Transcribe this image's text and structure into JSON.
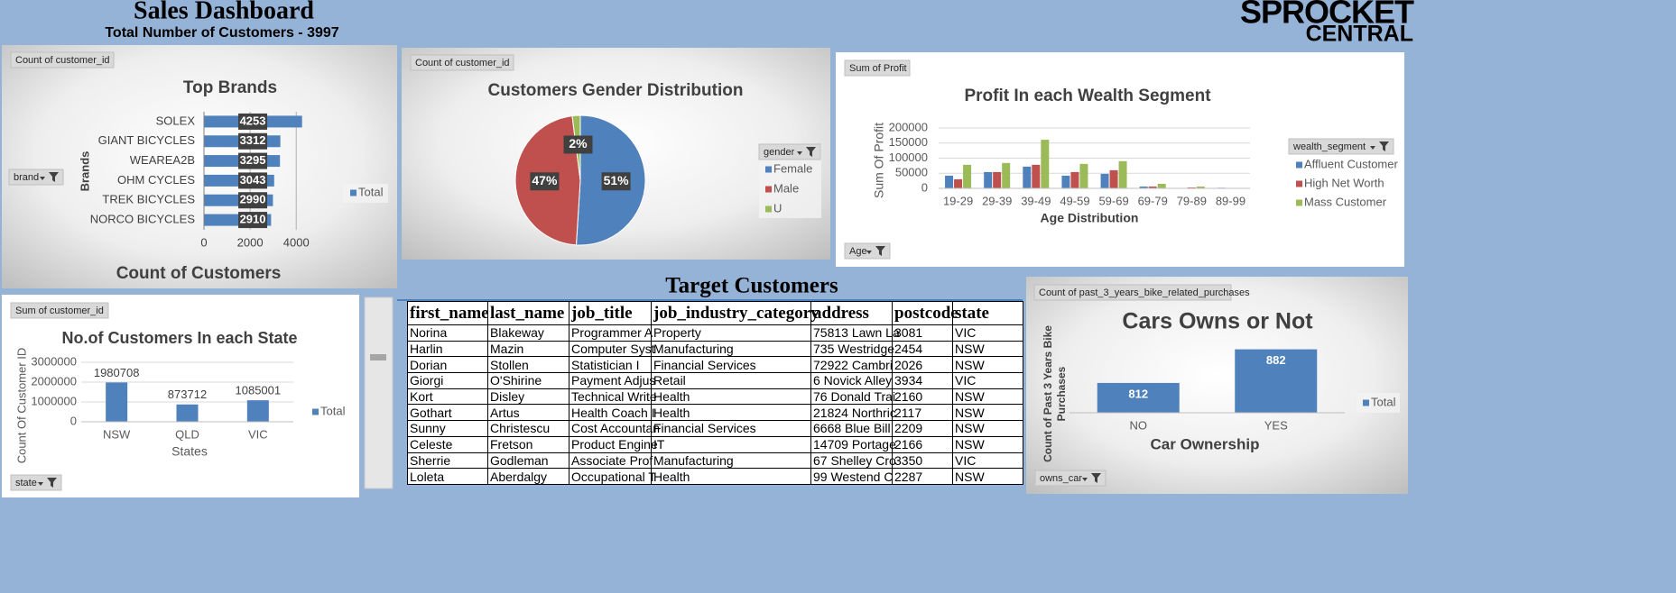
{
  "header": {
    "title": "Sales Dashboard",
    "subtitle": "Total Number of Customers - 3997",
    "logo_top": "SPROCKET",
    "logo_bottom": "CENTRAL",
    "table_title": "Target Customers"
  },
  "chart_data": [
    {
      "type": "bar",
      "orientation": "horizontal",
      "title": "Top Brands",
      "field_button": "Count of customer_id",
      "filter_button": "brand",
      "ylabel": "Brands",
      "xlabel": "Count of Customers",
      "categories": [
        "SOLEX",
        "GIANT BICYCLES",
        "WEAREA2B",
        "OHM CYCLES",
        "TREK BICYCLES",
        "NORCO BICYCLES"
      ],
      "series": [
        {
          "name": "Total",
          "color": "#4f81bd",
          "values": [
            4253,
            3312,
            3295,
            3043,
            2990,
            2910
          ]
        }
      ],
      "xlim": [
        0,
        4500
      ],
      "xticks": [
        0,
        2000,
        4000
      ],
      "grid": true
    },
    {
      "type": "pie",
      "title": "Customers Gender Distribution",
      "field_button": "Count of customer_id",
      "filter_button": "gender",
      "categories": [
        "Female",
        "Male",
        "U"
      ],
      "values": [
        51,
        47,
        2
      ],
      "value_labels": [
        "51%",
        "47%",
        "2%"
      ],
      "colors": [
        "#4f81bd",
        "#c0504d",
        "#9bbb59"
      ]
    },
    {
      "type": "bar",
      "title": "Profit In each Wealth Segment",
      "field_button": "Sum of Profit",
      "filter_button": "Age",
      "legend_title": "wealth_segment",
      "ylabel": "Sum Of Profit",
      "xlabel": "Age Distribution",
      "categories": [
        "19-29",
        "29-39",
        "39-49",
        "49-59",
        "59-69",
        "69-79",
        "79-89",
        "89-99"
      ],
      "series": [
        {
          "name": "Affluent Customer",
          "color": "#4f81bd",
          "values": [
            42000,
            54000,
            72000,
            42000,
            48000,
            6000,
            1000,
            2000
          ]
        },
        {
          "name": "High Net Worth",
          "color": "#c0504d",
          "values": [
            30000,
            54000,
            78000,
            54000,
            60000,
            6000,
            3000,
            0
          ]
        },
        {
          "name": "Mass Customer",
          "color": "#9bbb59",
          "values": [
            78000,
            84000,
            161000,
            81000,
            90000,
            15000,
            6000,
            0
          ]
        }
      ],
      "ylim": [
        0,
        200000
      ],
      "yticks": [
        0,
        50000,
        100000,
        150000,
        200000
      ],
      "grid": true
    },
    {
      "type": "bar",
      "title": "No.of Customers In each State",
      "field_button": "Sum of customer_id",
      "filter_button": "state",
      "ylabel": "Count Of Customer ID",
      "xlabel": "States",
      "categories": [
        "NSW",
        "QLD",
        "VIC"
      ],
      "series": [
        {
          "name": "Total",
          "color": "#4f81bd",
          "values": [
            1980708,
            873712,
            1085001
          ]
        }
      ],
      "ylim": [
        0,
        3000000
      ],
      "yticks": [
        0,
        1000000,
        2000000,
        3000000
      ],
      "grid": true
    },
    {
      "type": "bar",
      "title": "Cars Owns or Not",
      "field_button": "Count of past_3_years_bike_related_purchases",
      "filter_button": "owns_car",
      "ylabel": [
        "Count of Past 3 Years Bike",
        "Purchases"
      ],
      "xlabel": "Car Ownership",
      "categories": [
        "NO",
        "YES"
      ],
      "series": [
        {
          "name": "Total",
          "color": "#4f81bd",
          "values": [
            812,
            882
          ]
        }
      ],
      "ylim": [
        750,
        900
      ]
    }
  ],
  "table": {
    "columns": [
      "first_name",
      "last_name",
      "job_title",
      "job_industry_category",
      "address",
      "postcode",
      "state"
    ],
    "rows": [
      [
        "Norina",
        "Blakeway",
        "Programmer A",
        "Property",
        "75813 Lawn La",
        "3081",
        "VIC"
      ],
      [
        "Harlin",
        "Mazin",
        "Computer Syst",
        "Manufacturing",
        "735 Westridge",
        "2454",
        "NSW"
      ],
      [
        "Dorian",
        "Stollen",
        "Statistician I",
        "Financial Services",
        "72922 Cambri",
        "2026",
        "NSW"
      ],
      [
        "Giorgi",
        "O'Shirine",
        "Payment Adjus",
        "Retail",
        "6 Novick Alley",
        "3934",
        "VIC"
      ],
      [
        "Kort",
        "Disley",
        "Technical Write",
        "Health",
        "76 Donald Trai",
        "2160",
        "NSW"
      ],
      [
        "Gothart",
        "Artus",
        "Health Coach I",
        "Health",
        "21824 Northric",
        "2117",
        "NSW"
      ],
      [
        "Sunny",
        "Christescu",
        "Cost Accountan",
        "Financial Services",
        "6668 Blue Bill",
        "2209",
        "NSW"
      ],
      [
        "Celeste",
        "Fretson",
        "Product Engine",
        "IT",
        "14709 Portage",
        "2166",
        "NSW"
      ],
      [
        "Sherrie",
        "Godleman",
        "Associate Prof",
        "Manufacturing",
        "67 Shelley Cro",
        "3350",
        "VIC"
      ],
      [
        "Loleta",
        "Aberdalgy",
        "Occupational T",
        "Health",
        "99 Westend C",
        "2287",
        "NSW"
      ]
    ]
  }
}
